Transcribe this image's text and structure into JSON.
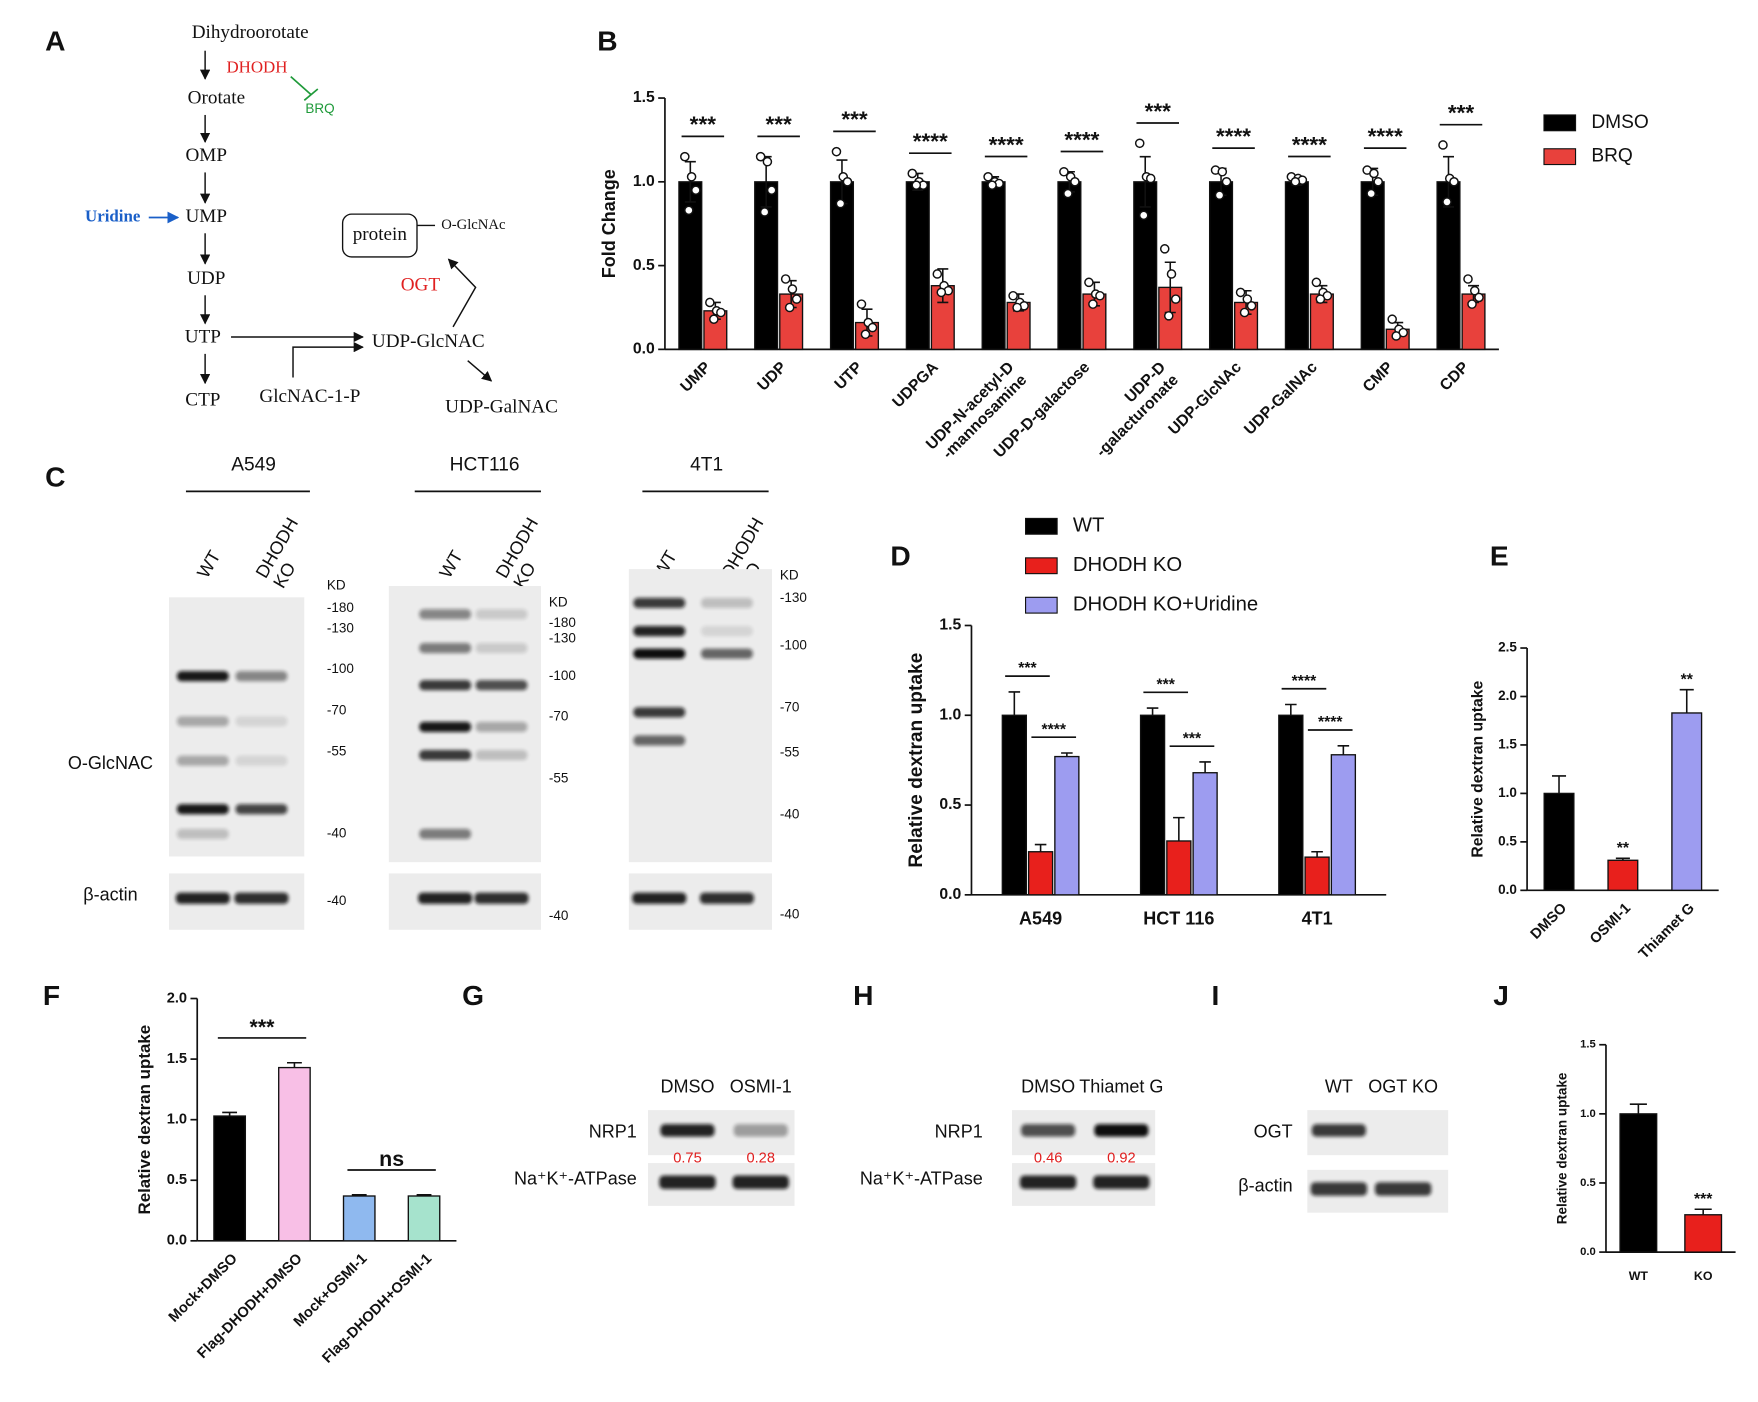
{
  "pathway": {
    "panel": "A",
    "nodes": [
      "Dihydroorotate",
      "DHODH",
      "BRQ",
      "Orotate",
      "OMP",
      "Uridine",
      "UMP",
      "UDP",
      "UTP",
      "CTP",
      "GlcNAC-1-P",
      "UDP-GlcNAC",
      "UDP-GalNAC",
      "OGT",
      "protein",
      "O-GlcNAc"
    ]
  },
  "blot_c": {
    "panel": "C",
    "row_labels": [
      "O-GlcNAC",
      "β-actin"
    ],
    "cell_lines": [
      {
        "name": "A549",
        "lanes": [
          "WT",
          [
            "DHODH",
            "KO"
          ]
        ],
        "markers": [
          "KD",
          "-180",
          "-130",
          "-100",
          "-70",
          "-55",
          "-40"
        ],
        "actin_marker": "-40"
      },
      {
        "name": "HCT116",
        "lanes": [
          "WT",
          [
            "DHODH",
            "KO"
          ]
        ],
        "markers": [
          "KD",
          "-180",
          "-130",
          "-100",
          "-70",
          "-55"
        ],
        "actin_marker": "-40"
      },
      {
        "name": "4T1",
        "lanes": [
          "WT",
          [
            "DHODH",
            "KO"
          ]
        ],
        "markers": [
          "KD",
          "-130",
          "-100",
          "-70",
          "-55",
          "-40"
        ],
        "actin_marker": "-40"
      }
    ]
  },
  "blot_g": {
    "panel": "G",
    "lanes": [
      "DMSO",
      "OSMI-1"
    ],
    "rows": [
      "NRP1",
      "Na⁺K⁺-ATPase"
    ],
    "quantification": [
      0.75,
      0.28
    ]
  },
  "blot_h": {
    "panel": "H",
    "lanes": [
      "DMSO",
      "Thiamet G"
    ],
    "rows": [
      "NRP1",
      "Na⁺K⁺-ATPase"
    ],
    "quantification": [
      0.46,
      0.92
    ]
  },
  "blot_i": {
    "panel": "I",
    "lanes": [
      "WT",
      "OGT KO"
    ],
    "rows": [
      "OGT",
      "β-actin"
    ]
  },
  "chart_data": [
    {
      "panel": "B",
      "type": "bar",
      "ylabel": "Fold Change",
      "legend": "right",
      "categories": [
        "UMP",
        "UDP",
        "UTP",
        "UDPGA",
        [
          "UDP-N-acetyl-D",
          "-mannosamine"
        ],
        "UDP-D-galactose",
        [
          "UDP-D",
          "-galacturonate"
        ],
        "UDP-GlcNAc",
        "UDP-GalNAc",
        "CMP",
        "CDP"
      ],
      "series": [
        {
          "name": "DMSO",
          "color": "#000000",
          "values": [
            1.0,
            1.0,
            1.0,
            1.0,
            1.0,
            1.0,
            1.0,
            1.0,
            1.0,
            1.0,
            1.0
          ],
          "errors": [
            0.12,
            0.15,
            0.13,
            0.05,
            0.03,
            0.06,
            0.15,
            0.08,
            0.02,
            0.08,
            0.15
          ],
          "points": [
            [
              1.15,
              1.03,
              0.95,
              0.83
            ],
            [
              1.15,
              1.12,
              0.95,
              0.82
            ],
            [
              1.18,
              1.03,
              1.0,
              0.87
            ],
            [
              1.05,
              1.0,
              0.98,
              0.98
            ],
            [
              1.03,
              1.0,
              0.99,
              0.98
            ],
            [
              1.06,
              1.03,
              1.0,
              0.93
            ],
            [
              1.23,
              1.03,
              1.02,
              0.8
            ],
            [
              1.07,
              1.06,
              1.0,
              0.92
            ],
            [
              1.03,
              1.02,
              1.01,
              1.0
            ],
            [
              1.07,
              1.05,
              1.0,
              0.93
            ],
            [
              1.22,
              1.02,
              1.0,
              0.88
            ]
          ]
        },
        {
          "name": "BRQ",
          "color": "#e8413c",
          "values": [
            0.23,
            0.33,
            0.16,
            0.38,
            0.28,
            0.33,
            0.37,
            0.28,
            0.33,
            0.12,
            0.33
          ],
          "errors": [
            0.05,
            0.08,
            0.08,
            0.1,
            0.05,
            0.07,
            0.15,
            0.07,
            0.05,
            0.04,
            0.05
          ],
          "points": [
            [
              0.28,
              0.23,
              0.22,
              0.18
            ],
            [
              0.42,
              0.36,
              0.3,
              0.25
            ],
            [
              0.27,
              0.16,
              0.13,
              0.09
            ],
            [
              0.45,
              0.38,
              0.35,
              0.34
            ],
            [
              0.32,
              0.28,
              0.26,
              0.25
            ],
            [
              0.4,
              0.33,
              0.32,
              0.27
            ],
            [
              0.6,
              0.45,
              0.3,
              0.2
            ],
            [
              0.34,
              0.3,
              0.26,
              0.22
            ],
            [
              0.4,
              0.34,
              0.32,
              0.3
            ],
            [
              0.18,
              0.12,
              0.1,
              0.08
            ],
            [
              0.42,
              0.35,
              0.31,
              0.27
            ]
          ]
        }
      ],
      "ylim": [
        0,
        1.5
      ],
      "yticks": [
        {
          "value": 0,
          "label": "0.0"
        },
        0.5,
        {
          "value": 1,
          "label": "1.0"
        },
        1.5
      ],
      "comparisons": [
        {
          "category": 0,
          "series": [
            0,
            1
          ],
          "label": "***"
        },
        {
          "category": 1,
          "series": [
            0,
            1
          ],
          "label": "***"
        },
        {
          "category": 2,
          "series": [
            0,
            1
          ],
          "label": "***"
        },
        {
          "category": 3,
          "series": [
            0,
            1
          ],
          "label": "****"
        },
        {
          "category": 4,
          "series": [
            0,
            1
          ],
          "label": "****"
        },
        {
          "category": 5,
          "series": [
            0,
            1
          ],
          "label": "****"
        },
        {
          "category": 6,
          "series": [
            0,
            1
          ],
          "label": "***"
        },
        {
          "category": 7,
          "series": [
            0,
            1
          ],
          "label": "****"
        },
        {
          "category": 8,
          "series": [
            0,
            1
          ],
          "label": "****"
        },
        {
          "category": 9,
          "series": [
            0,
            1
          ],
          "label": "****"
        },
        {
          "category": 10,
          "series": [
            0,
            1
          ],
          "label": "***"
        }
      ]
    },
    {
      "panel": "D",
      "type": "bar",
      "ylabel": "Relative dextran uptake",
      "legend": "top",
      "categories": [
        "A549",
        "HCT 116",
        "4T1"
      ],
      "series": [
        {
          "name": "WT",
          "color": "#000000",
          "values": [
            1.0,
            1.0,
            1.0
          ],
          "errors": [
            0.13,
            0.04,
            0.06
          ]
        },
        {
          "name": "DHODH KO",
          "color": "#e8201c",
          "values": [
            0.24,
            0.3,
            0.21
          ],
          "errors": [
            0.04,
            0.13,
            0.03
          ]
        },
        {
          "name": "DHODH KO+Uridine",
          "color": "#9d9cf0",
          "values": [
            0.77,
            0.68,
            0.78
          ],
          "errors": [
            0.02,
            0.06,
            0.05
          ]
        }
      ],
      "ylim": [
        0,
        1.5
      ],
      "yticks": [
        {
          "value": 0,
          "label": "0.0"
        },
        0.5,
        {
          "value": 1,
          "label": "1.0"
        },
        1.5
      ],
      "comparisons": [
        {
          "category": 0,
          "series": [
            0,
            1
          ],
          "label": "***"
        },
        {
          "category": 0,
          "series": [
            1,
            2
          ],
          "label": "****"
        },
        {
          "category": 1,
          "series": [
            0,
            1
          ],
          "label": "***"
        },
        {
          "category": 1,
          "series": [
            1,
            2
          ],
          "label": "***"
        },
        {
          "category": 2,
          "series": [
            0,
            1
          ],
          "label": "****"
        },
        {
          "category": 2,
          "series": [
            1,
            2
          ],
          "label": "****"
        }
      ]
    },
    {
      "panel": "E",
      "type": "bar",
      "ylabel": "Relative dextran uptake",
      "categories": [
        "DMSO",
        "OSMI-1",
        "Thiamet G"
      ],
      "values": [
        1.0,
        0.31,
        1.83
      ],
      "errors": [
        0.18,
        0.02,
        0.24
      ],
      "colors": [
        "#000000",
        "#e8201c",
        "#9d9cf0"
      ],
      "ylim": [
        0,
        2.5
      ],
      "yticks": [
        {
          "value": 0,
          "label": "0.0"
        },
        0.5,
        {
          "value": 1,
          "label": "1.0"
        },
        1.5,
        {
          "value": 2,
          "label": "2.0"
        },
        2.5
      ],
      "comparisons": [
        {
          "category": 1,
          "label": "**"
        },
        {
          "category": 2,
          "label": "**"
        }
      ]
    },
    {
      "panel": "F",
      "type": "bar",
      "ylabel": "Relative dextran uptake",
      "categories": [
        "Mock+DMSO",
        "Flag-DHODH+DMSO",
        "Mock+OSMI-1",
        "Flag-DHODH+OSMI-1"
      ],
      "values": [
        1.03,
        1.43,
        0.37,
        0.37
      ],
      "errors": [
        0.03,
        0.04,
        0.01,
        0.01
      ],
      "colors": [
        "#000000",
        "#f8bfe6",
        "#8fb9ef",
        "#a6e3cd"
      ],
      "ylim": [
        0,
        2
      ],
      "yticks": [
        {
          "value": 0,
          "label": "0.0"
        },
        0.5,
        {
          "value": 1,
          "label": "1.0"
        },
        1.5,
        {
          "value": 2,
          "label": "2.0"
        }
      ],
      "comparisons": [
        {
          "categories": [
            0,
            1
          ],
          "label": "***"
        },
        {
          "categories": [
            2,
            3
          ],
          "label": "ns"
        }
      ]
    },
    {
      "panel": "J",
      "type": "bar",
      "ylabel": "Relative dextran uptake",
      "categories": [
        "WT",
        "KO"
      ],
      "values": [
        1.0,
        0.27
      ],
      "errors": [
        0.07,
        0.04
      ],
      "colors": [
        "#000000",
        "#e8201c"
      ],
      "ylim": [
        0,
        1.5
      ],
      "yticks": [
        {
          "value": 0,
          "label": "0.0"
        },
        0.5,
        {
          "value": 1,
          "label": "1.0"
        },
        1.5
      ],
      "comparisons": [
        {
          "category": 1,
          "label": "***"
        }
      ]
    }
  ]
}
